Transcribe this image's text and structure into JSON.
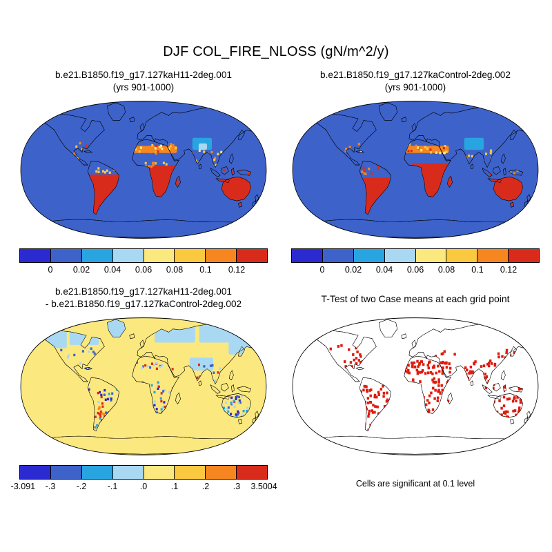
{
  "figure": {
    "title": "DJF COL_FIRE_NLOSS (gN/m^2/y)"
  },
  "panels": {
    "top_left": {
      "title_line1": "b.e21.B1850.f19_g17.127kaH11-2deg.001",
      "title_line2": "(yrs 901-1000)",
      "colorbar": {
        "labels": [
          "0",
          "0.02",
          "0.04",
          "0.06",
          "0.08",
          "0.1",
          "0.12"
        ],
        "colors": [
          "#2a2ad0",
          "#3d62c9",
          "#28a5e0",
          "#a9d8f2",
          "#fbe87f",
          "#fbc93f",
          "#f6861f",
          "#d92b1c"
        ]
      }
    },
    "top_right": {
      "title_line1": "b.e21.B1850.f19_g17.127kaControl-2deg.002",
      "title_line2": "(yrs 901-1000)",
      "colorbar": {
        "labels": [
          "0",
          "0.02",
          "0.04",
          "0.06",
          "0.08",
          "0.1",
          "0.12"
        ],
        "colors": [
          "#2a2ad0",
          "#3d62c9",
          "#28a5e0",
          "#a9d8f2",
          "#fbe87f",
          "#fbc93f",
          "#f6861f",
          "#d92b1c"
        ]
      }
    },
    "bottom_left": {
      "title_line1": "b.e21.B1850.f19_g17.127kaH11-2deg.001",
      "title_line2": "- b.e21.B1850.f19_g17.127kaControl-2deg.002",
      "colorbar": {
        "labels": [
          "-3.091",
          "-.3",
          "-.2",
          "-.1",
          ".0",
          ".1",
          ".2",
          ".3",
          "3.5004"
        ],
        "colors": [
          "#2a2ad0",
          "#3d62c9",
          "#28a5e0",
          "#a9d8f2",
          "#fbe87f",
          "#fbc93f",
          "#f6861f",
          "#d92b1c"
        ]
      }
    },
    "bottom_right": {
      "title_line1": "T-Test of two Case means at each grid point",
      "caption": "Cells are significant at 0.1 level"
    }
  },
  "colors": {
    "ocean_value_bin": "#3d62c9",
    "diff_background_bin": "#fbe87f",
    "ttest_red": "#e01b0e",
    "coastline": "#000000",
    "background": "#ffffff"
  },
  "chart_data": [
    {
      "type": "heatmap",
      "subtype": "global-map",
      "projection": "robinson",
      "panel": "top_left",
      "title": "b.e21.B1850.f19_g17.127kaH11-2deg.001 (yrs 901-1000)",
      "season": "DJF",
      "variable": "COL_FIRE_NLOSS",
      "units": "gN/m^2/y",
      "colorbar_bin_edges": [
        0,
        0.02,
        0.04,
        0.06,
        0.08,
        0.1,
        0.12
      ],
      "colorbar_colors": [
        "#2a2ad0",
        "#3d62c9",
        "#28a5e0",
        "#a9d8f2",
        "#fbe87f",
        "#fbc93f",
        "#f6861f",
        "#d92b1c"
      ],
      "summary": "Oceans and most extratropical land fall in the 0-0.02 bin (blue). Values above 0.12 (red) cover central and southern South America, sub-Saharan and southern Africa, and Australia. Moderate values (0.06-0.12, yellow to orange) appear along the Sahel, Mexico, India and Southeast Asia; a light-blue/cyan patch sits over the Tibetan Plateau region."
    },
    {
      "type": "heatmap",
      "subtype": "global-map",
      "projection": "robinson",
      "panel": "top_right",
      "title": "b.e21.B1850.f19_g17.127kaControl-2deg.002 (yrs 901-1000)",
      "season": "DJF",
      "variable": "COL_FIRE_NLOSS",
      "units": "gN/m^2/y",
      "colorbar_bin_edges": [
        0,
        0.02,
        0.04,
        0.06,
        0.08,
        0.1,
        0.12
      ],
      "colorbar_colors": [
        "#2a2ad0",
        "#3d62c9",
        "#28a5e0",
        "#a9d8f2",
        "#fbe87f",
        "#fbc93f",
        "#f6861f",
        "#d92b1c"
      ],
      "summary": "Very similar pattern to the H11 case: blue (0-0.02) oceans and high-latitude land, red (>0.12) over southern South America, southern Africa and Australia, orange-yellow values along the Sahel, Mexico, India and Southeast Asia."
    },
    {
      "type": "heatmap",
      "subtype": "global-map-difference",
      "projection": "robinson",
      "panel": "bottom_left",
      "title": "b.e21.B1850.f19_g17.127kaH11-2deg.001 - b.e21.B1850.f19_g17.127kaControl-2deg.002",
      "season": "DJF",
      "variable": "COL_FIRE_NLOSS difference",
      "units": "gN/m^2/y",
      "min": -3.091,
      "max": 3.5004,
      "colorbar_bin_edges": [
        -3.091,
        -0.3,
        -0.2,
        -0.1,
        0,
        0.1,
        0.2,
        0.3,
        3.5004
      ],
      "colorbar_colors": [
        "#2a2ad0",
        "#3d62c9",
        "#28a5e0",
        "#a9d8f2",
        "#fbe87f",
        "#fbc93f",
        "#f6861f",
        "#d92b1c"
      ],
      "summary": "Most of the globe sits in the 0 to 0.1 bin (pale yellow). Weak negative differences (-0.1 to 0, light blue) spread over high-latitude North America, Greenland and northern Eurasia. Mixed strong positive (red/orange) and negative (blue/navy) speckles occur over South America (red cluster near Argentina), southern Africa, the Sahel, India, Southeast Asia and Australia."
    },
    {
      "type": "heatmap",
      "subtype": "significance-mask",
      "projection": "robinson",
      "panel": "bottom_right",
      "title": "T-Test of two Case means at each grid point",
      "caption": "Cells are significant at 0.1 level",
      "values": "binary mask: red cell = significant difference at 0.1 level",
      "summary": "Red cells mark grid points with significant differences: widespread over tropical and southern South America, the Sahel and southern Africa, South and Southeast Asia, the Maritime Continent and Australia, with scattered cells in Mexico, the United States and East Asia."
    }
  ]
}
